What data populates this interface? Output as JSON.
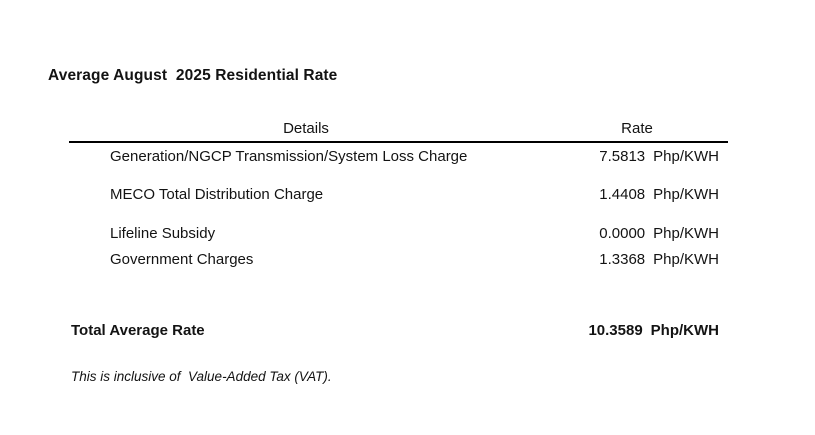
{
  "title": "Average August  2025 Residential Rate",
  "table": {
    "headers": {
      "details": "Details",
      "rate": "Rate"
    },
    "rows": [
      {
        "label": "Generation/NGCP Transmission/System Loss Charge",
        "value": "7.5813",
        "unit": "Php/KWH"
      },
      {
        "label": "MECO Total Distribution Charge",
        "value": "1.4408",
        "unit": "Php/KWH"
      },
      {
        "label": "Lifeline Subsidy",
        "value": "0.0000",
        "unit": "Php/KWH"
      },
      {
        "label": "Government Charges",
        "value": "1.3368",
        "unit": "Php/KWH"
      }
    ],
    "total": {
      "label": "Total Average Rate",
      "value": "10.3589",
      "unit": "Php/KWH"
    }
  },
  "footnote": "This is inclusive of  Value-Added Tax (VAT)."
}
